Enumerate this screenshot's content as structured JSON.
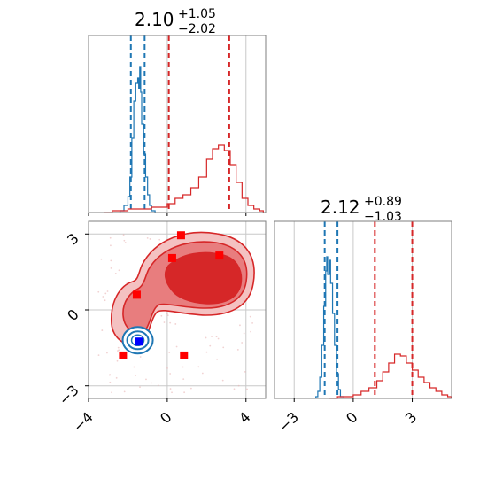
{
  "chart_data": [
    {
      "type": "histogram",
      "panel": "top-left marginal (parameter 1)",
      "title": {
        "value": "2.10",
        "plus": "+1.05",
        "minus": "−2.02"
      },
      "xlim": [
        -4,
        5
      ],
      "grid": true,
      "series": [
        {
          "color": "#1f77b4",
          "quantiles": [
            -1.85,
            -1.15
          ],
          "bins": [
            [
              -2.4,
              0.01
            ],
            [
              -2.2,
              0.04
            ],
            [
              -2.0,
              0.09
            ],
            [
              -1.9,
              0.2
            ],
            [
              -1.8,
              0.42
            ],
            [
              -1.7,
              0.63
            ],
            [
              -1.6,
              0.73
            ],
            [
              -1.5,
              0.76
            ],
            [
              -1.45,
              0.7
            ],
            [
              -1.4,
              0.82
            ],
            [
              -1.35,
              0.68
            ],
            [
              -1.3,
              0.5
            ],
            [
              -1.2,
              0.33
            ],
            [
              -1.1,
              0.2
            ],
            [
              -1.0,
              0.1
            ],
            [
              -0.9,
              0.04
            ],
            [
              -0.8,
              0.01
            ]
          ]
        },
        {
          "color": "#d62728",
          "quantiles": [
            0.08,
            3.15
          ],
          "bins": [
            [
              -3.2,
              0.0
            ],
            [
              -2.8,
              0.01
            ],
            [
              -2.4,
              0.01
            ],
            [
              -2.0,
              0.02
            ],
            [
              -1.6,
              0.02
            ],
            [
              -1.2,
              0.02
            ],
            [
              -0.8,
              0.03
            ],
            [
              -0.4,
              0.03
            ],
            [
              0.0,
              0.05
            ],
            [
              0.4,
              0.08
            ],
            [
              0.8,
              0.1
            ],
            [
              1.2,
              0.14
            ],
            [
              1.6,
              0.2
            ],
            [
              2.0,
              0.3
            ],
            [
              2.3,
              0.36
            ],
            [
              2.6,
              0.38
            ],
            [
              2.9,
              0.35
            ],
            [
              3.2,
              0.27
            ],
            [
              3.5,
              0.17
            ],
            [
              3.8,
              0.08
            ],
            [
              4.1,
              0.04
            ],
            [
              4.4,
              0.02
            ],
            [
              4.7,
              0.01
            ]
          ]
        }
      ]
    },
    {
      "type": "contour",
      "panel": "bottom-left joint (parameter 1 vs parameter 2)",
      "xlim": [
        -4,
        5
      ],
      "ylim": [
        -3.5,
        3.5
      ],
      "x_ticks": [
        -4,
        0,
        4
      ],
      "y_ticks": [
        -3,
        0,
        3
      ],
      "grid": true,
      "series": [
        {
          "color": "#d62728",
          "center": [
            1.5,
            2.3
          ],
          "note": "broad banana-shaped density"
        },
        {
          "color": "#1f77b4",
          "center": [
            -1.5,
            -1.2
          ],
          "note": "compact ring-shaped density"
        }
      ],
      "markers": [
        {
          "color": "#ff0000",
          "x": -1.55,
          "y": 0.6
        },
        {
          "color": "#ff0000",
          "x": 0.25,
          "y": 2.05
        },
        {
          "color": "#ff0000",
          "x": 0.7,
          "y": 2.95
        },
        {
          "color": "#ff0000",
          "x": 2.65,
          "y": 2.15
        },
        {
          "color": "#ff0000",
          "x": -2.25,
          "y": -1.8
        },
        {
          "color": "#ff0000",
          "x": 0.85,
          "y": -1.8
        },
        {
          "color": "#0000ff",
          "x": -1.45,
          "y": -1.25
        }
      ]
    },
    {
      "type": "histogram",
      "panel": "bottom-right marginal (parameter 2)",
      "title": {
        "value": "2.12",
        "plus": "+0.89",
        "minus": "−1.03"
      },
      "xlim": [
        -4,
        5
      ],
      "x_ticks": [
        -3,
        0,
        3
      ],
      "grid": true,
      "series": [
        {
          "color": "#1f77b4",
          "quantiles": [
            -1.45,
            -0.8
          ],
          "bins": [
            [
              -1.9,
              0.01
            ],
            [
              -1.8,
              0.04
            ],
            [
              -1.7,
              0.12
            ],
            [
              -1.6,
              0.3
            ],
            [
              -1.5,
              0.52
            ],
            [
              -1.4,
              0.72
            ],
            [
              -1.35,
              0.8
            ],
            [
              -1.3,
              0.7
            ],
            [
              -1.2,
              0.78
            ],
            [
              -1.15,
              0.65
            ],
            [
              -1.05,
              0.48
            ],
            [
              -0.95,
              0.3
            ],
            [
              -0.85,
              0.14
            ],
            [
              -0.75,
              0.05
            ],
            [
              -0.65,
              0.01
            ]
          ]
        },
        {
          "color": "#d62728",
          "quantiles": [
            1.1,
            3.0
          ],
          "bins": [
            [
              -1.2,
              0.0
            ],
            [
              -0.8,
              0.01
            ],
            [
              -0.4,
              0.01
            ],
            [
              0.0,
              0.02
            ],
            [
              0.4,
              0.04
            ],
            [
              0.8,
              0.06
            ],
            [
              1.2,
              0.1
            ],
            [
              1.5,
              0.15
            ],
            [
              1.8,
              0.2
            ],
            [
              2.1,
              0.25
            ],
            [
              2.4,
              0.24
            ],
            [
              2.7,
              0.2
            ],
            [
              3.0,
              0.16
            ],
            [
              3.3,
              0.12
            ],
            [
              3.6,
              0.09
            ],
            [
              3.9,
              0.06
            ],
            [
              4.2,
              0.04
            ],
            [
              4.5,
              0.02
            ],
            [
              4.8,
              0.01
            ]
          ]
        }
      ]
    }
  ]
}
